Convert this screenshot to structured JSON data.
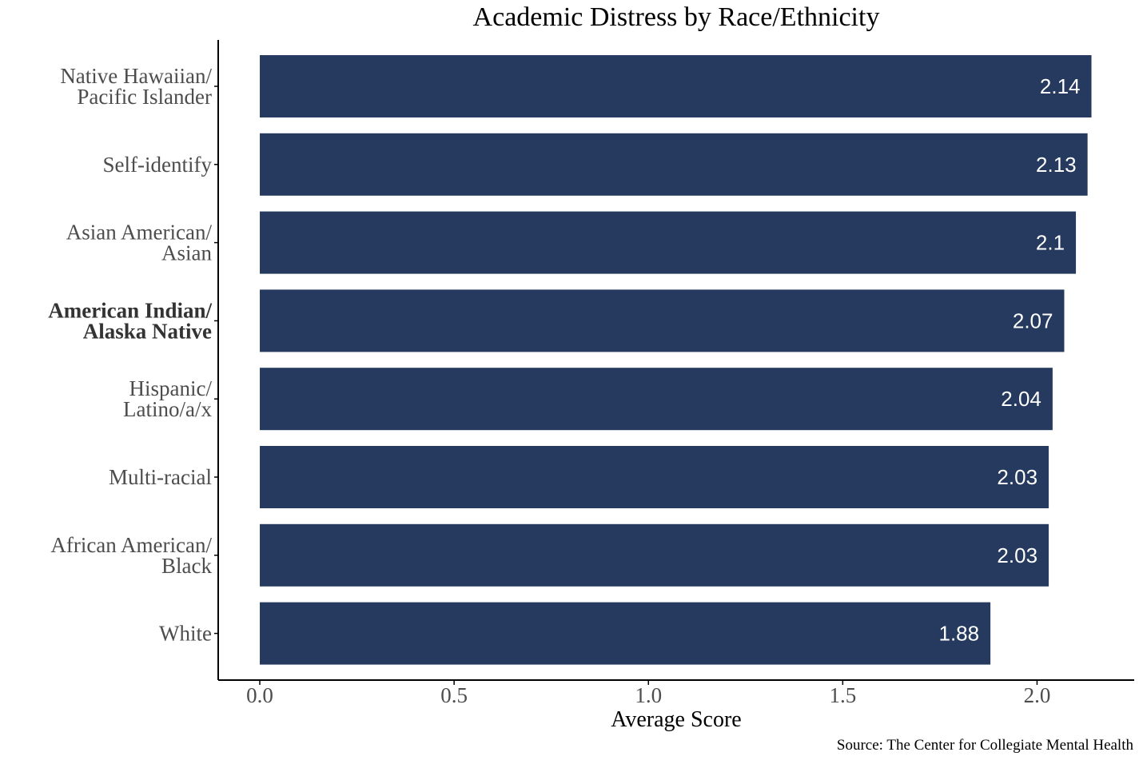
{
  "chart_data": {
    "type": "bar",
    "orientation": "horizontal",
    "title": "Academic Distress by Race/Ethnicity",
    "xlabel": "Average Score",
    "ylabel": "",
    "source": "Source: The Center for Collegiate Mental Health",
    "categories": [
      [
        "Native Hawaiian/",
        "Pacific Islander"
      ],
      [
        "Self-identify"
      ],
      [
        "Asian American/",
        "Asian"
      ],
      [
        "American Indian/",
        "Alaska Native"
      ],
      [
        "Hispanic/",
        "Latino/a/x"
      ],
      [
        "Multi-racial"
      ],
      [
        "African American/",
        "Black"
      ],
      [
        "White"
      ]
    ],
    "bold_categories": [
      3
    ],
    "values": [
      2.14,
      2.13,
      2.1,
      2.07,
      2.04,
      2.03,
      2.03,
      1.88
    ],
    "data_labels": [
      "2.14",
      "2.13",
      "2.1",
      "2.07",
      "2.04",
      "2.03",
      "2.03",
      "1.88"
    ],
    "xlim": [
      -0.107,
      2.25
    ],
    "xticks": [
      0,
      0.5,
      1,
      1.5,
      2
    ],
    "xtick_labels": [
      "0.0",
      "0.5",
      "1.0",
      "1.5",
      "2.0"
    ],
    "grid": false,
    "legend": "none",
    "colors": {
      "bar": "#253A5E",
      "axis": "#000000"
    }
  }
}
